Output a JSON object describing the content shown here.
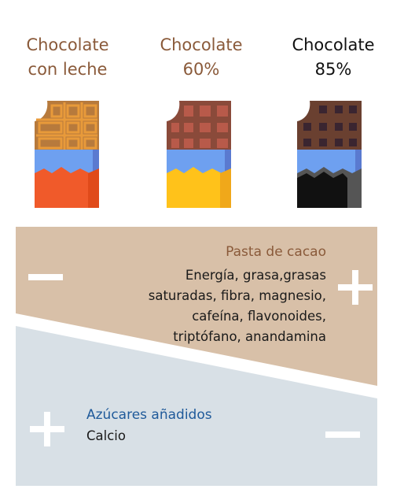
{
  "bars": [
    {
      "title_line1": "Chocolate",
      "title_line2": "con leche",
      "title_color": "#8a5a3a",
      "choc_color": "#b77a3c",
      "square_color": "#e89a3a",
      "wrap_top": "#6ea0f0",
      "wrap_bottom": "#f05a2a"
    },
    {
      "title_line1": "Chocolate",
      "title_line2": "60%",
      "title_color": "#8a5a3a",
      "choc_color": "#8a4a3a",
      "square_color": "#b85a4a",
      "wrap_top": "#6ea0f0",
      "wrap_bottom": "#ffc21a"
    },
    {
      "title_line1": "Chocolate",
      "title_line2": "85%",
      "title_color": "#111111",
      "choc_color": "#6a4030",
      "square_color": "#3a2530",
      "wrap_top": "#6ea0f0",
      "wrap_bottom": "#111111"
    }
  ],
  "pasta": {
    "label": "Pasta de cacao",
    "text": "Energía, grasa,grasas saturadas, fibra, magnesio, cafeína, flavonoides, triptófano, anandamina"
  },
  "azucares": {
    "label": "Azúcares añadidos",
    "text": "Calcio"
  },
  "colors": {
    "pasta_bg": "#d8c0a8",
    "azucar_bg": "#d8e0e6"
  }
}
